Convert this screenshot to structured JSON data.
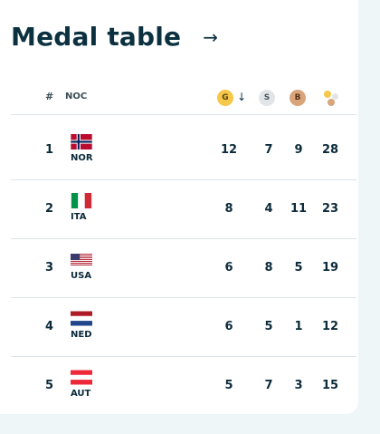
{
  "title": "Medal table",
  "header": {
    "rank": "#",
    "noc": "NOC",
    "gold": "G",
    "silver": "S",
    "bronze": "B"
  },
  "rows": [
    {
      "rank": "1",
      "noc": "NOR",
      "gold": "12",
      "silver": "7",
      "bronze": "9",
      "total": "28"
    },
    {
      "rank": "2",
      "noc": "ITA",
      "gold": "8",
      "silver": "4",
      "bronze": "11",
      "total": "23"
    },
    {
      "rank": "3",
      "noc": "USA",
      "gold": "6",
      "silver": "8",
      "bronze": "5",
      "total": "19"
    },
    {
      "rank": "4",
      "noc": "NED",
      "gold": "6",
      "silver": "5",
      "bronze": "1",
      "total": "12"
    },
    {
      "rank": "5",
      "noc": "AUT",
      "gold": "5",
      "silver": "7",
      "bronze": "3",
      "total": "15"
    }
  ],
  "colors": {
    "gold": "#f5c74b",
    "silver": "#e1e5e8",
    "bronze": "#d9a47a"
  }
}
